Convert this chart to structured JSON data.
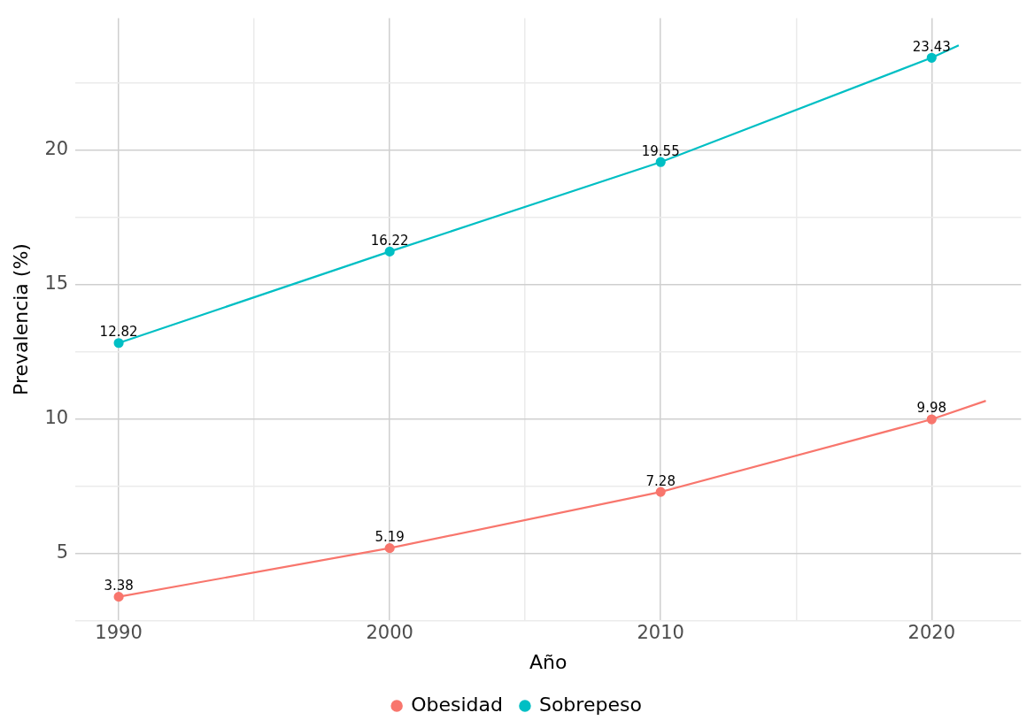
{
  "chart_data": {
    "type": "line",
    "xlabel": "Año",
    "ylabel": "Prevalencia (%)",
    "series": [
      {
        "name": "Obesidad",
        "color": "#f8766d",
        "x": [
          1990,
          2000,
          2010,
          2020,
          2022
        ],
        "values": [
          3.38,
          5.19,
          7.28,
          9.98,
          10.67
        ],
        "value_labels": [
          "3.38",
          "5.19",
          "7.28",
          "9.98",
          null
        ]
      },
      {
        "name": "Sobrepeso",
        "color": "#00bfc4",
        "x": [
          1990,
          2000,
          2010,
          2020,
          2021
        ],
        "values": [
          12.82,
          16.22,
          19.55,
          23.43,
          23.89
        ],
        "value_labels": [
          "12.82",
          "16.22",
          "19.55",
          "23.43",
          null
        ]
      }
    ],
    "xlim": [
      1988.4,
      2023.3
    ],
    "xticks": [
      1990,
      {
        "value": 1995,
        "label": null
      },
      2000,
      {
        "value": 2005,
        "label": null
      },
      2010,
      {
        "value": 2015,
        "label": null
      },
      2020
    ],
    "ylim": [
      2.5,
      24.9
    ],
    "yticks": [
      {
        "value": 2.5,
        "label": null
      },
      5,
      {
        "value": 7.5,
        "label": null
      },
      10,
      {
        "value": 12.5,
        "label": null
      },
      15,
      {
        "value": 17.5,
        "label": null
      },
      20,
      {
        "value": 22.5,
        "label": null
      }
    ],
    "grid": true,
    "legend": "bottom",
    "marker": "circle",
    "line_style": "solid"
  }
}
